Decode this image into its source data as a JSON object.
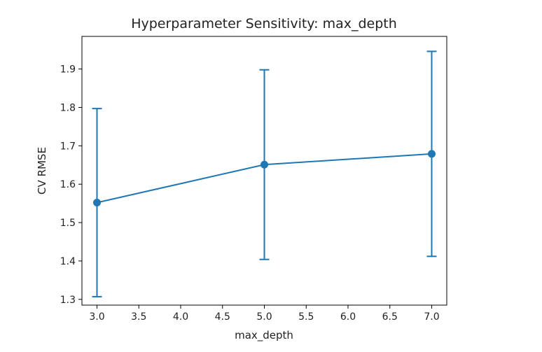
{
  "chart_data": {
    "type": "line",
    "title": "Hyperparameter Sensitivity: max_depth",
    "xlabel": "max_depth",
    "ylabel": "CV RMSE",
    "xlim": [
      2.82,
      7.18
    ],
    "ylim": [
      1.285,
      1.985
    ],
    "xticks": [
      3.0,
      3.5,
      4.0,
      4.5,
      5.0,
      5.5,
      6.0,
      6.5,
      7.0
    ],
    "xtick_labels": [
      "3.0",
      "3.5",
      "4.0",
      "4.5",
      "5.0",
      "5.5",
      "6.0",
      "6.5",
      "7.0"
    ],
    "yticks": [
      1.3,
      1.4,
      1.5,
      1.6,
      1.7,
      1.8,
      1.9
    ],
    "ytick_labels": [
      "1.3",
      "1.4",
      "1.5",
      "1.6",
      "1.7",
      "1.8",
      "1.9"
    ],
    "grid": false,
    "series": [
      {
        "name": "CV RMSE",
        "color": "#1f77b4",
        "x": [
          3,
          5,
          7
        ],
        "y": [
          1.552,
          1.651,
          1.679
        ],
        "yerr": [
          0.245,
          0.247,
          0.267
        ]
      }
    ]
  }
}
